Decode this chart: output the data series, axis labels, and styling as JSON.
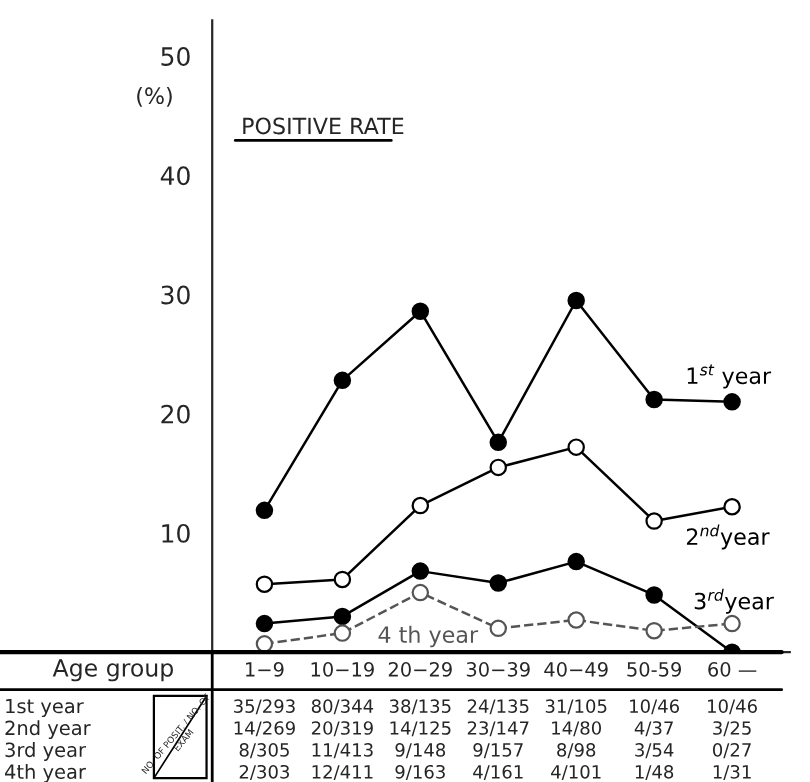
{
  "chart_data": {
    "type": "line",
    "title": "POSITIVE RATE",
    "ylabel": "(%)",
    "xlabel": "Age group",
    "categories": [
      "1−9",
      "10−19",
      "20−29",
      "30−39",
      "40−49",
      "50-59",
      "60 —"
    ],
    "series": [
      {
        "name": "1$^{st}$ year",
        "color": "#000000",
        "line_style": "solid",
        "values": [
          11.9,
          22.8,
          28.6,
          17.6,
          29.5,
          21.2,
          21.0
        ]
      },
      {
        "name": "2$^{nd}$year",
        "color": "#000000",
        "line_style": "solid",
        "values": [
          5.7,
          6.1,
          12.3,
          15.5,
          17.2,
          11.0,
          12.2
        ]
      },
      {
        "name": "3$^{rd}$year",
        "color": "#000000",
        "line_style": "solid",
        "values": [
          2.4,
          3.0,
          6.8,
          5.8,
          7.6,
          4.8,
          0
        ]
      },
      {
        "name": "4 th year",
        "color": "#555555",
        "line_style": "dashed",
        "values": [
          0.7,
          1.6,
          5.0,
          2.0,
          2.7,
          1.8,
          2.4
        ]
      }
    ],
    "ylim": [
      0,
      53
    ],
    "yticks": [
      10,
      20,
      30,
      40,
      50
    ],
    "grid": false,
    "legend": false,
    "marker": "circle",
    "annotations": [
      "NO. OF POSIT. / NO. OF EXAM",
      "1st year",
      "35/293",
      "80/344",
      "38/135",
      "24/135",
      "31/105",
      "10/46",
      "10/46",
      "2nd year",
      "14/269",
      "20/319",
      "14/125",
      "23/147",
      "14/80",
      "4/37",
      "3/25",
      "3rd year",
      "8/305",
      "11/413",
      "9/148",
      "9/157",
      "8/98",
      "3/54",
      "0/27",
      "4th year",
      "2/303",
      "12/411",
      "9/163",
      "4/161",
      "4/101",
      "1/48",
      "1/31"
    ]
  }
}
